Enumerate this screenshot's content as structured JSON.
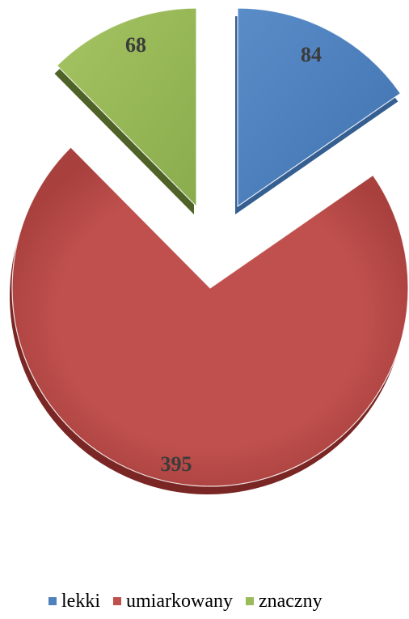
{
  "chart_data": {
    "type": "pie",
    "style": "3d-exploded",
    "categories": [
      "lekki",
      "umiarkowany",
      "znaczny"
    ],
    "values": [
      84,
      395,
      68
    ],
    "colors": [
      "#4f81bd",
      "#c0504d",
      "#9bbb59"
    ],
    "data_labels": [
      "84",
      "395",
      "68"
    ],
    "legend_position": "bottom"
  }
}
